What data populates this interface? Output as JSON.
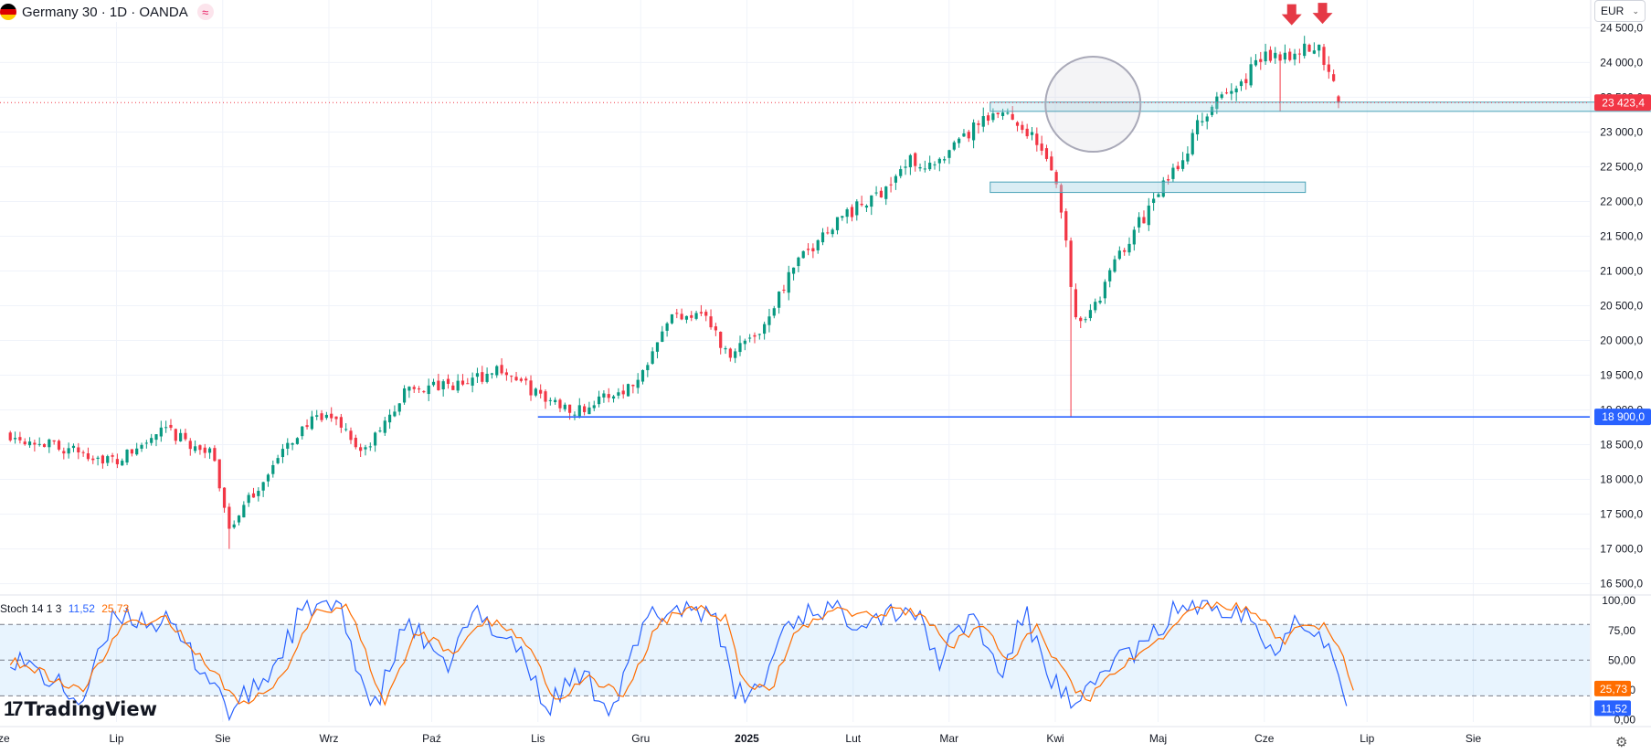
{
  "header": {
    "symbol_title": "Germany 30 · 1D · OANDA",
    "flag_colors": [
      "#000000",
      "#dd0000",
      "#ffcc00"
    ],
    "indicator_icon": "wave-icon"
  },
  "currency_button": {
    "label": "EUR",
    "icon": "chevron-down-icon"
  },
  "price_labels": {
    "current": "23 423,4",
    "current_value": 23423.4,
    "current_color": "#f23645",
    "support": "18 900,0",
    "support_value": 18900,
    "support_color": "#2962ff"
  },
  "stoch_legend": {
    "name": "Stoch 14 1 3",
    "k_value": "11,52",
    "d_value": "25,73",
    "k_color": "#2962ff",
    "d_color": "#ff6d00"
  },
  "watermark": {
    "text": "TradingView",
    "logo_icon": "tradingview-logo-icon"
  },
  "settings_icon": "gear-icon",
  "chart_data": [
    {
      "type": "candlestick",
      "title": "Germany 30 · 1D · OANDA",
      "y_axis_ticks": [
        "24 500,0",
        "24 000,0",
        "23 500,0",
        "23 000,0",
        "22 500,0",
        "22 000,0",
        "21 500,0",
        "21 000,0",
        "20 500,0",
        "20 000,0",
        "19 500,0",
        "19 000,0",
        "18 500,0",
        "18 000,0",
        "17 500,0",
        "17 000,0",
        "16 500,0"
      ],
      "y_tick_values": [
        24500,
        24000,
        23500,
        23000,
        22500,
        22000,
        21500,
        21000,
        20500,
        20000,
        19500,
        19000,
        18500,
        18000,
        17500,
        17000,
        16500
      ],
      "ylim": [
        16350,
        24900
      ],
      "x_axis_ticks": [
        "Lip",
        "Sie",
        "Wrz",
        "Paź",
        "Lis",
        "Gru",
        "2025",
        "Lut",
        "Mar",
        "Kwi",
        "Maj",
        "Cze",
        "Lip",
        "Sie"
      ],
      "x_tick_days": [
        0,
        31,
        62,
        92,
        123,
        153,
        184,
        215,
        243,
        274,
        304,
        335,
        365,
        396
      ],
      "x_start_label": "Cze",
      "x_domain_days": [
        -34,
        430
      ],
      "colors": {
        "up": "#089981",
        "down": "#f23645"
      },
      "closes": [
        {
          "d": -31,
          "c": 18650
        },
        {
          "d": 0,
          "c": 18250
        },
        {
          "d": 14,
          "c": 18700
        },
        {
          "d": 20,
          "c": 18550
        },
        {
          "d": 28,
          "c": 18350
        },
        {
          "d": 33,
          "c": 17300
        },
        {
          "d": 45,
          "c": 18150
        },
        {
          "d": 55,
          "c": 18800
        },
        {
          "d": 64,
          "c": 18900
        },
        {
          "d": 72,
          "c": 18350
        },
        {
          "d": 85,
          "c": 19300
        },
        {
          "d": 100,
          "c": 19350
        },
        {
          "d": 112,
          "c": 19600
        },
        {
          "d": 125,
          "c": 19150
        },
        {
          "d": 135,
          "c": 19000
        },
        {
          "d": 152,
          "c": 19400
        },
        {
          "d": 160,
          "c": 20300
        },
        {
          "d": 171,
          "c": 20450
        },
        {
          "d": 178,
          "c": 19800
        },
        {
          "d": 188,
          "c": 20150
        },
        {
          "d": 197,
          "c": 21000
        },
        {
          "d": 210,
          "c": 21750
        },
        {
          "d": 220,
          "c": 22000
        },
        {
          "d": 232,
          "c": 22600
        },
        {
          "d": 240,
          "c": 22500
        },
        {
          "d": 250,
          "c": 23050
        },
        {
          "d": 260,
          "c": 23300
        },
        {
          "d": 268,
          "c": 22900
        },
        {
          "d": 275,
          "c": 22200
        },
        {
          "d": 280,
          "c": 20300
        },
        {
          "d": 286,
          "c": 20500
        },
        {
          "d": 292,
          "c": 21200
        },
        {
          "d": 300,
          "c": 21800
        },
        {
          "d": 310,
          "c": 22550
        },
        {
          "d": 318,
          "c": 23300
        },
        {
          "d": 326,
          "c": 23600
        },
        {
          "d": 335,
          "c": 24100
        },
        {
          "d": 343,
          "c": 24150
        },
        {
          "d": 351,
          "c": 24200
        },
        {
          "d": 358,
          "c": 23423.4
        }
      ],
      "annotations": {
        "resistance_zone": {
          "y": [
            23350,
            23430
          ],
          "days": [
            255,
            456
          ]
        },
        "support_zone": {
          "y": [
            22130,
            22280
          ],
          "days": [
            255,
            347
          ]
        },
        "support_line": {
          "y": 18900,
          "start_day": 123
        },
        "current_price_line": {
          "y": 23423.4
        },
        "circle_center": {
          "day": 285,
          "y": 23400
        },
        "down_arrows": [
          {
            "day": 343,
            "y": 24550
          },
          {
            "day": 352,
            "y": 24570
          }
        ]
      }
    },
    {
      "type": "line",
      "title": "Stoch 14 1 3",
      "y_axis_ticks": [
        "100,00",
        "75,00",
        "50,00",
        "25,00",
        "0,00"
      ],
      "y_tick_values": [
        100,
        75,
        50,
        25,
        0
      ],
      "ylim": [
        -2,
        104
      ],
      "bands": {
        "upper": 80,
        "middle": 50,
        "lower": 20
      },
      "series": [
        {
          "name": "%K",
          "last": 11.52,
          "anchors": [
            {
              "d": -31,
              "v": 55
            },
            {
              "d": -10,
              "v": 15
            },
            {
              "d": 0,
              "v": 90
            },
            {
              "d": 15,
              "v": 80
            },
            {
              "d": 30,
              "v": 25
            },
            {
              "d": 33,
              "v": 5
            },
            {
              "d": 45,
              "v": 40
            },
            {
              "d": 55,
              "v": 95
            },
            {
              "d": 65,
              "v": 95
            },
            {
              "d": 75,
              "v": 5
            },
            {
              "d": 85,
              "v": 85
            },
            {
              "d": 95,
              "v": 40
            },
            {
              "d": 105,
              "v": 90
            },
            {
              "d": 118,
              "v": 60
            },
            {
              "d": 125,
              "v": 8
            },
            {
              "d": 135,
              "v": 40
            },
            {
              "d": 145,
              "v": 10
            },
            {
              "d": 155,
              "v": 85
            },
            {
              "d": 165,
              "v": 95
            },
            {
              "d": 175,
              "v": 90
            },
            {
              "d": 180,
              "v": 20
            },
            {
              "d": 188,
              "v": 25
            },
            {
              "d": 195,
              "v": 80
            },
            {
              "d": 205,
              "v": 95
            },
            {
              "d": 215,
              "v": 85
            },
            {
              "d": 225,
              "v": 90
            },
            {
              "d": 232,
              "v": 95
            },
            {
              "d": 240,
              "v": 50
            },
            {
              "d": 250,
              "v": 90
            },
            {
              "d": 258,
              "v": 35
            },
            {
              "d": 265,
              "v": 90
            },
            {
              "d": 272,
              "v": 40
            },
            {
              "d": 280,
              "v": 5
            },
            {
              "d": 290,
              "v": 50
            },
            {
              "d": 300,
              "v": 60
            },
            {
              "d": 310,
              "v": 95
            },
            {
              "d": 320,
              "v": 98
            },
            {
              "d": 330,
              "v": 92
            },
            {
              "d": 337,
              "v": 55
            },
            {
              "d": 343,
              "v": 85
            },
            {
              "d": 350,
              "v": 80
            },
            {
              "d": 355,
              "v": 50
            },
            {
              "d": 359,
              "v": 11.52
            }
          ]
        },
        {
          "name": "%D",
          "last": 25.73,
          "anchors": [
            {
              "d": -31,
              "v": 50
            },
            {
              "d": -10,
              "v": 25
            },
            {
              "d": 2,
              "v": 80
            },
            {
              "d": 15,
              "v": 85
            },
            {
              "d": 30,
              "v": 35
            },
            {
              "d": 36,
              "v": 10
            },
            {
              "d": 48,
              "v": 35
            },
            {
              "d": 58,
              "v": 90
            },
            {
              "d": 68,
              "v": 95
            },
            {
              "d": 78,
              "v": 12
            },
            {
              "d": 88,
              "v": 75
            },
            {
              "d": 98,
              "v": 55
            },
            {
              "d": 108,
              "v": 85
            },
            {
              "d": 120,
              "v": 65
            },
            {
              "d": 128,
              "v": 15
            },
            {
              "d": 138,
              "v": 35
            },
            {
              "d": 148,
              "v": 20
            },
            {
              "d": 158,
              "v": 80
            },
            {
              "d": 168,
              "v": 95
            },
            {
              "d": 178,
              "v": 85
            },
            {
              "d": 183,
              "v": 30
            },
            {
              "d": 191,
              "v": 25
            },
            {
              "d": 198,
              "v": 75
            },
            {
              "d": 208,
              "v": 92
            },
            {
              "d": 218,
              "v": 88
            },
            {
              "d": 228,
              "v": 92
            },
            {
              "d": 235,
              "v": 90
            },
            {
              "d": 243,
              "v": 60
            },
            {
              "d": 253,
              "v": 82
            },
            {
              "d": 261,
              "v": 45
            },
            {
              "d": 268,
              "v": 80
            },
            {
              "d": 275,
              "v": 45
            },
            {
              "d": 283,
              "v": 15
            },
            {
              "d": 293,
              "v": 45
            },
            {
              "d": 303,
              "v": 62
            },
            {
              "d": 313,
              "v": 92
            },
            {
              "d": 323,
              "v": 97
            },
            {
              "d": 333,
              "v": 90
            },
            {
              "d": 340,
              "v": 65
            },
            {
              "d": 346,
              "v": 78
            },
            {
              "d": 353,
              "v": 78
            },
            {
              "d": 358,
              "v": 55
            },
            {
              "d": 361,
              "v": 25.73
            }
          ]
        }
      ]
    }
  ]
}
